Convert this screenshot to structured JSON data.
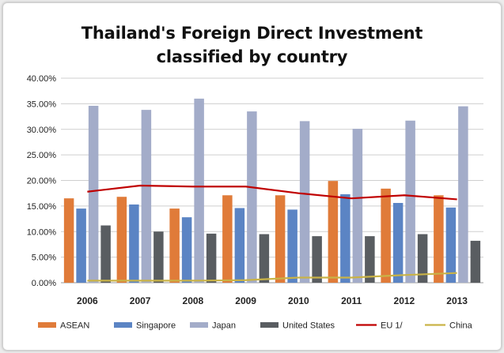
{
  "chart_data": {
    "type": "bar",
    "title_line1": "Thailand's Foreign Direct Investment",
    "title_line2": "classified by country",
    "categories": [
      "2006",
      "2007",
      "2008",
      "2009",
      "2010",
      "2011",
      "2012",
      "2013"
    ],
    "ylim": [
      0,
      40
    ],
    "yticks": [
      "0.00%",
      "5.00%",
      "10.00%",
      "15.00%",
      "20.00%",
      "25.00%",
      "30.00%",
      "35.00%",
      "40.00%"
    ],
    "grid": true,
    "legend_position": "bottom",
    "series": [
      {
        "name": "ASEAN",
        "kind": "bar",
        "color": "#e07b39",
        "values": [
          16.5,
          16.8,
          14.5,
          17.1,
          17.1,
          19.9,
          18.4,
          17.1
        ]
      },
      {
        "name": "Singapore",
        "kind": "bar",
        "color": "#5b84c4",
        "values": [
          14.5,
          15.3,
          12.8,
          14.6,
          14.3,
          17.3,
          15.6,
          14.7
        ]
      },
      {
        "name": "Japan",
        "kind": "bar",
        "color": "#a3acc9",
        "values": [
          34.6,
          33.8,
          36.0,
          33.5,
          31.6,
          30.1,
          31.7,
          34.5
        ]
      },
      {
        "name": "United States",
        "kind": "bar",
        "color": "#595d61",
        "values": [
          11.2,
          10.0,
          9.6,
          9.5,
          9.1,
          9.1,
          9.5,
          8.2
        ]
      },
      {
        "name": "EU 1/",
        "kind": "line",
        "color": "#c00000",
        "values": [
          17.8,
          19.0,
          18.8,
          18.8,
          17.5,
          16.5,
          17.1,
          16.3
        ]
      },
      {
        "name": "China",
        "kind": "line",
        "color": "#c9b347",
        "values": [
          0.4,
          0.4,
          0.4,
          0.5,
          1.0,
          1.0,
          1.5,
          1.9
        ]
      }
    ]
  }
}
